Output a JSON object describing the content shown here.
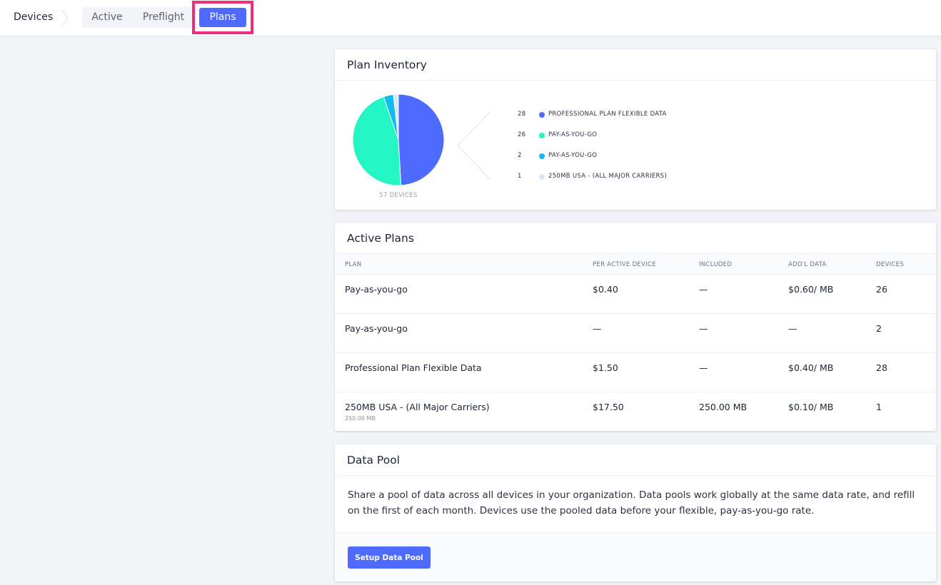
{
  "breadcrumb": "Devices",
  "tabs": {
    "active": "Active",
    "preflight": "Preflight",
    "plans": "Plans"
  },
  "inventory": {
    "title": "Plan Inventory",
    "caption": "57 DEVICES",
    "chart_data": {
      "type": "pie",
      "total": 57,
      "categories": [
        "PROFESSIONAL PLAN FLEXIBLE DATA",
        "PAY-AS-YOU-GO",
        "PAY-AS-YOU-GO",
        "250MB USA - (ALL MAJOR CARRIERS)"
      ],
      "values": [
        28,
        26,
        2,
        1
      ],
      "colors": [
        "#4f6bff",
        "#23f5c4",
        "#14b9f0",
        "#d4ebf2"
      ],
      "legend": [
        {
          "count": "28",
          "label": "PROFESSIONAL PLAN FLEXIBLE DATA",
          "color": "#4f6bff"
        },
        {
          "count": "26",
          "label": "PAY-AS-YOU-GO",
          "color": "#23f5c4"
        },
        {
          "count": "2",
          "label": "PAY-AS-YOU-GO",
          "color": "#14b9f0"
        },
        {
          "count": "1",
          "label": "250MB USA - (ALL MAJOR CARRIERS)",
          "color": "#d4ebf2"
        }
      ]
    }
  },
  "active_plans": {
    "title": "Active Plans",
    "columns": {
      "plan": "PLAN",
      "per": "PER ACTIVE DEVICE",
      "included": "INCLUDED",
      "addl": "ADD'L DATA",
      "devices": "DEVICES"
    },
    "rows": [
      {
        "plan": "Pay-as-you-go",
        "sub": "",
        "per": "$0.40",
        "included": "—",
        "addl": "$0.60/ MB",
        "devices": "26"
      },
      {
        "plan": "Pay-as-you-go",
        "sub": "",
        "per": "—",
        "included": "—",
        "addl": "—",
        "devices": "2"
      },
      {
        "plan": "Professional Plan Flexible Data",
        "sub": "",
        "per": "$1.50",
        "included": "—",
        "addl": "$0.40/ MB",
        "devices": "28"
      },
      {
        "plan": "250MB USA - (All Major Carriers)",
        "sub": "250.00 MB",
        "per": "$17.50",
        "included": "250.00 MB",
        "addl": "$0.10/ MB",
        "devices": "1"
      }
    ]
  },
  "data_pool": {
    "title": "Data Pool",
    "description": "Share a pool of data across all devices in your organization. Data pools work globally at the same data rate, and refill on the first of each month. Devices use the pooled data before your flexible, pay-as-you-go rate.",
    "button": "Setup Data Pool"
  }
}
